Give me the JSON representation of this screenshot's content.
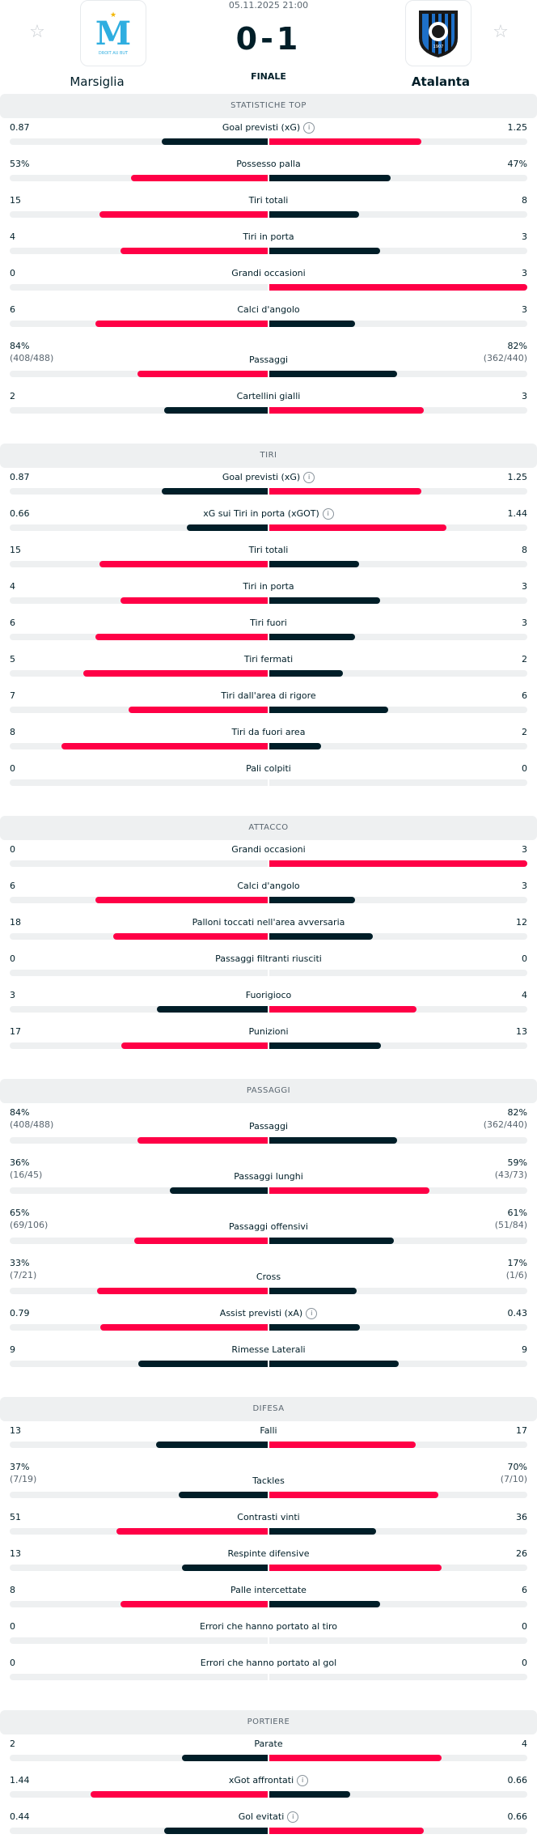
{
  "colors": {
    "highlight": "#ff0046",
    "dark": "#001e28",
    "track": "#eef0f1"
  },
  "match": {
    "date": "05.11.2025 21:00",
    "score": "0-1",
    "status": "FINALE",
    "home": {
      "name": "Marsiglia",
      "logo_text": "DROIT AU BUT"
    },
    "away": {
      "name": "Atalanta"
    }
  },
  "icons": {
    "favorite": "star-outline-icon",
    "info": "info-icon"
  },
  "sections": [
    {
      "title": "STATISTICHE TOP",
      "stats": [
        {
          "label": "Goal previsti (xG)",
          "info": true,
          "home": "0.87",
          "away": "1.25",
          "hv": 0.87,
          "av": 1.25
        },
        {
          "label": "Possesso palla",
          "home": "53%",
          "away": "47%",
          "hv": 53,
          "av": 47
        },
        {
          "label": "Tiri totali",
          "home": "15",
          "away": "8",
          "hv": 15,
          "av": 8
        },
        {
          "label": "Tiri in porta",
          "home": "4",
          "away": "3",
          "hv": 4,
          "av": 3
        },
        {
          "label": "Grandi occasioni",
          "home": "0",
          "away": "3",
          "hv": 0,
          "av": 3
        },
        {
          "label": "Calci d'angolo",
          "home": "6",
          "away": "3",
          "hv": 6,
          "av": 3
        },
        {
          "label": "Passaggi",
          "home": "84%",
          "home_sub": "(408/488)",
          "away": "82%",
          "away_sub": "(362/440)",
          "hv": 84,
          "av": 82
        },
        {
          "label": "Cartellini gialli",
          "home": "2",
          "away": "3",
          "hv": 2,
          "av": 3
        }
      ]
    },
    {
      "title": "TIRI",
      "stats": [
        {
          "label": "Goal previsti (xG)",
          "info": true,
          "home": "0.87",
          "away": "1.25",
          "hv": 0.87,
          "av": 1.25
        },
        {
          "label": "xG sui Tiri in porta (xGOT)",
          "info": true,
          "home": "0.66",
          "away": "1.44",
          "hv": 0.66,
          "av": 1.44
        },
        {
          "label": "Tiri totali",
          "home": "15",
          "away": "8",
          "hv": 15,
          "av": 8
        },
        {
          "label": "Tiri in porta",
          "home": "4",
          "away": "3",
          "hv": 4,
          "av": 3
        },
        {
          "label": "Tiri fuori",
          "home": "6",
          "away": "3",
          "hv": 6,
          "av": 3
        },
        {
          "label": "Tiri fermati",
          "home": "5",
          "away": "2",
          "hv": 5,
          "av": 2
        },
        {
          "label": "Tiri dall'area di rigore",
          "home": "7",
          "away": "6",
          "hv": 7,
          "av": 6
        },
        {
          "label": "Tiri da fuori area",
          "home": "8",
          "away": "2",
          "hv": 8,
          "av": 2
        },
        {
          "label": "Pali colpiti",
          "home": "0",
          "away": "0",
          "hv": 0,
          "av": 0
        }
      ]
    },
    {
      "title": "ATTACCO",
      "stats": [
        {
          "label": "Grandi occasioni",
          "home": "0",
          "away": "3",
          "hv": 0,
          "av": 3
        },
        {
          "label": "Calci d'angolo",
          "home": "6",
          "away": "3",
          "hv": 6,
          "av": 3
        },
        {
          "label": "Palloni toccati nell'area avversaria",
          "home": "18",
          "away": "12",
          "hv": 18,
          "av": 12
        },
        {
          "label": "Passaggi filtranti riusciti",
          "home": "0",
          "away": "0",
          "hv": 0,
          "av": 0
        },
        {
          "label": "Fuorigioco",
          "home": "3",
          "away": "4",
          "hv": 3,
          "av": 4
        },
        {
          "label": "Punizioni",
          "home": "17",
          "away": "13",
          "hv": 17,
          "av": 13
        }
      ]
    },
    {
      "title": "PASSAGGI",
      "stats": [
        {
          "label": "Passaggi",
          "home": "84%",
          "home_sub": "(408/488)",
          "away": "82%",
          "away_sub": "(362/440)",
          "hv": 84,
          "av": 82
        },
        {
          "label": "Passaggi lunghi",
          "home": "36%",
          "home_sub": "(16/45)",
          "away": "59%",
          "away_sub": "(43/73)",
          "hv": 36,
          "av": 59
        },
        {
          "label": "Passaggi offensivi",
          "home": "65%",
          "home_sub": "(69/106)",
          "away": "61%",
          "away_sub": "(51/84)",
          "hv": 65,
          "av": 61
        },
        {
          "label": "Cross",
          "home": "33%",
          "home_sub": "(7/21)",
          "away": "17%",
          "away_sub": "(1/6)",
          "hv": 33,
          "av": 17
        },
        {
          "label": "Assist previsti (xA)",
          "info": true,
          "home": "0.79",
          "away": "0.43",
          "hv": 0.79,
          "av": 0.43
        },
        {
          "label": "Rimesse Laterali",
          "home": "9",
          "away": "9",
          "hv": 9,
          "av": 9
        }
      ]
    },
    {
      "title": "DIFESA",
      "stats": [
        {
          "label": "Falli",
          "home": "13",
          "away": "17",
          "hv": 13,
          "av": 17
        },
        {
          "label": "Tackles",
          "home": "37%",
          "home_sub": "(7/19)",
          "away": "70%",
          "away_sub": "(7/10)",
          "hv": 37,
          "av": 70
        },
        {
          "label": "Contrasti vinti",
          "home": "51",
          "away": "36",
          "hv": 51,
          "av": 36
        },
        {
          "label": "Respinte difensive",
          "home": "13",
          "away": "26",
          "hv": 13,
          "av": 26
        },
        {
          "label": "Palle intercettate",
          "home": "8",
          "away": "6",
          "hv": 8,
          "av": 6
        },
        {
          "label": "Errori che hanno portato al tiro",
          "home": "0",
          "away": "0",
          "hv": 0,
          "av": 0
        },
        {
          "label": "Errori che hanno portato al gol",
          "home": "0",
          "away": "0",
          "hv": 0,
          "av": 0
        }
      ]
    },
    {
      "title": "PORTIERE",
      "stats": [
        {
          "label": "Parate",
          "home": "2",
          "away": "4",
          "hv": 2,
          "av": 4
        },
        {
          "label": "xGot affrontati",
          "info": true,
          "home": "1.44",
          "away": "0.66",
          "hv": 1.44,
          "av": 0.66
        },
        {
          "label": "Gol evitati",
          "info": true,
          "home": "0.44",
          "away": "0.66",
          "hv": 0.44,
          "av": 0.66
        }
      ]
    }
  ]
}
